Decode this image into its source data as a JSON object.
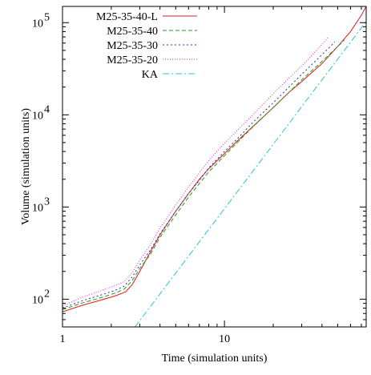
{
  "chart_data": {
    "type": "line",
    "xlabel": "Time (simulation units)",
    "ylabel": "Volume (simulation units)",
    "x_scale": "log",
    "y_scale": "log",
    "xlim": [
      1,
      75
    ],
    "ylim": [
      50,
      150000
    ],
    "grid": false,
    "legend_position": "top-left",
    "x_ticks": [
      {
        "value": 1,
        "label": "1"
      },
      {
        "value": 10,
        "label": "10"
      }
    ],
    "y_ticks": [
      {
        "value": 100,
        "base": "10",
        "exp": "2"
      },
      {
        "value": 1000,
        "base": "10",
        "exp": "3"
      },
      {
        "value": 10000,
        "base": "10",
        "exp": "4"
      },
      {
        "value": 100000,
        "base": "10",
        "exp": "5"
      }
    ],
    "series": [
      {
        "name": "M25-35-40-L",
        "color": "#e41a1c",
        "dash": "",
        "points": [
          [
            1.0,
            73
          ],
          [
            1.3,
            85
          ],
          [
            1.7,
            97
          ],
          [
            2.1,
            108
          ],
          [
            2.45,
            120
          ],
          [
            2.7,
            145
          ],
          [
            3.0,
            200
          ],
          [
            3.5,
            330
          ],
          [
            4.0,
            500
          ],
          [
            5.0,
            900
          ],
          [
            6.0,
            1400
          ],
          [
            7.0,
            2000
          ],
          [
            8.0,
            2600
          ],
          [
            10.0,
            3800
          ],
          [
            12.0,
            5200
          ],
          [
            15.0,
            7500
          ],
          [
            20.0,
            12000
          ],
          [
            25.0,
            17500
          ],
          [
            30.0,
            23000
          ],
          [
            40.0,
            36000
          ],
          [
            50.0,
            55000
          ],
          [
            60.0,
            80000
          ],
          [
            70.0,
            120000
          ],
          [
            75.0,
            150000
          ]
        ]
      },
      {
        "name": "M25-35-40",
        "color": "#1aa31a",
        "dash": "5,3",
        "points": [
          [
            1.0,
            77
          ],
          [
            1.3,
            90
          ],
          [
            1.7,
            103
          ],
          [
            2.1,
            116
          ],
          [
            2.4,
            128
          ],
          [
            2.7,
            160
          ],
          [
            3.0,
            215
          ],
          [
            3.5,
            310
          ],
          [
            4.0,
            470
          ],
          [
            5.0,
            820
          ],
          [
            6.0,
            1280
          ],
          [
            7.0,
            1800
          ],
          [
            8.0,
            2400
          ],
          [
            10.0,
            3600
          ],
          [
            12.0,
            5000
          ],
          [
            15.0,
            7400
          ],
          [
            20.0,
            12000
          ],
          [
            25.0,
            17500
          ],
          [
            30.0,
            24000
          ],
          [
            40.0,
            38000
          ],
          [
            50.0,
            55000
          ],
          [
            55.0,
            65000
          ]
        ]
      },
      {
        "name": "M25-35-30",
        "color": "#2c2ca8",
        "dash": "2,3",
        "points": [
          [
            1.0,
            80
          ],
          [
            1.3,
            95
          ],
          [
            1.7,
            110
          ],
          [
            2.1,
            124
          ],
          [
            2.4,
            138
          ],
          [
            2.7,
            175
          ],
          [
            3.0,
            235
          ],
          [
            3.5,
            345
          ],
          [
            4.0,
            510
          ],
          [
            5.0,
            900
          ],
          [
            6.0,
            1400
          ],
          [
            7.0,
            1950
          ],
          [
            8.0,
            2650
          ],
          [
            10.0,
            4000
          ],
          [
            12.0,
            5500
          ],
          [
            15.0,
            8300
          ],
          [
            20.0,
            13500
          ],
          [
            25.0,
            20000
          ],
          [
            30.0,
            27500
          ],
          [
            40.0,
            45000
          ],
          [
            45.0,
            55000
          ],
          [
            48.0,
            62000
          ]
        ]
      },
      {
        "name": "M25-35-20",
        "color": "#d42ad4",
        "dash": "1,2",
        "points": [
          [
            1.0,
            84
          ],
          [
            1.3,
            104
          ],
          [
            1.7,
            122
          ],
          [
            2.1,
            140
          ],
          [
            2.4,
            155
          ],
          [
            2.7,
            195
          ],
          [
            3.0,
            265
          ],
          [
            3.5,
            395
          ],
          [
            4.0,
            590
          ],
          [
            5.0,
            1050
          ],
          [
            6.0,
            1650
          ],
          [
            7.0,
            2350
          ],
          [
            8.0,
            3200
          ],
          [
            10.0,
            4900
          ],
          [
            12.0,
            6800
          ],
          [
            15.0,
            10000
          ],
          [
            20.0,
            17000
          ],
          [
            25.0,
            25000
          ],
          [
            30.0,
            34000
          ],
          [
            35.0,
            45000
          ],
          [
            40.0,
            58000
          ],
          [
            44.0,
            70000
          ]
        ]
      },
      {
        "name": "KA",
        "color": "#2ac4d4",
        "dash": "8,3,2,3",
        "points": [
          [
            2.8,
            50
          ],
          [
            75.0,
            103000
          ]
        ]
      }
    ]
  }
}
